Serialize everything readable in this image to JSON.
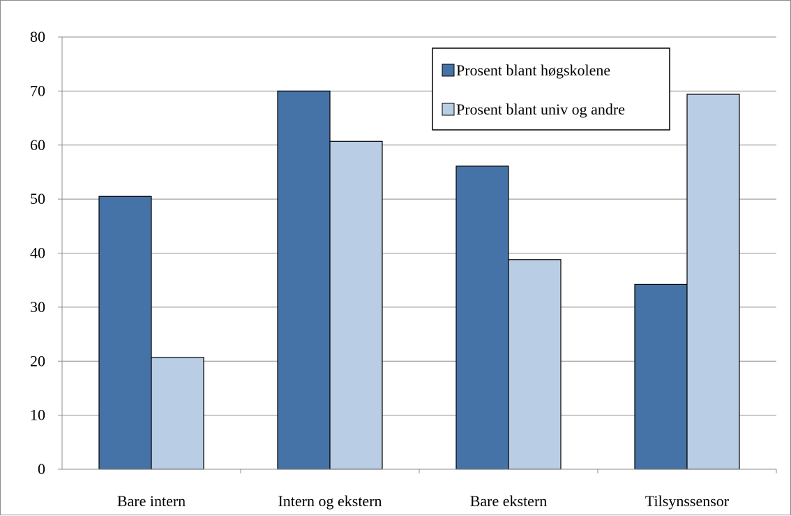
{
  "chart_data": {
    "type": "bar",
    "title": "",
    "xlabel": "",
    "ylabel": "",
    "categories": [
      "Bare intern",
      "Intern og ekstern",
      "Bare ekstern",
      "Tilsynssensor"
    ],
    "series": [
      {
        "name": "Prosent blant høgskolene",
        "values": [
          50.5,
          70.0,
          56.1,
          34.2
        ],
        "color": "#4573a7"
      },
      {
        "name": "Prosent blant univ og andre",
        "values": [
          20.7,
          60.7,
          38.8,
          69.4
        ],
        "color": "#b9cde5"
      }
    ],
    "ylim": [
      0,
      80
    ],
    "yticks": [
      0,
      10,
      20,
      30,
      40,
      50,
      60,
      70,
      80
    ],
    "grid": true,
    "legend_position": "top-right",
    "gridline_color": "#8c8c8c",
    "bar_edge_color": "#000000"
  }
}
